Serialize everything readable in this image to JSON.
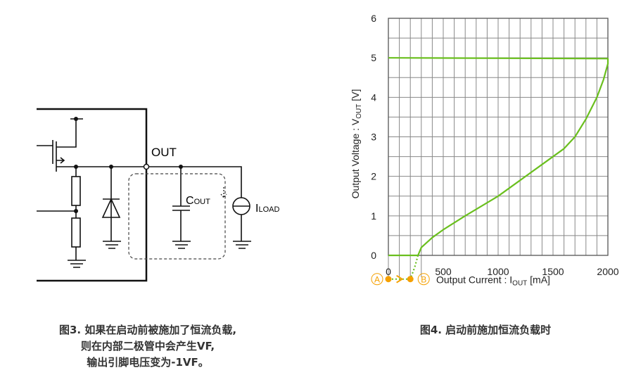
{
  "circuit": {
    "out_label": "OUT",
    "cout_label": "C",
    "cout_sub": "OUT",
    "v_label": "V",
    "iload_label": "I",
    "iload_sub": "LOAD"
  },
  "captions": {
    "fig3_line1": "图3. 如果在启动前被施加了恒流负载,",
    "fig3_line2": "则在内部二极管中会产生VF,",
    "fig3_line3": "输出引脚电压变为-1VF。",
    "fig4": "图4. 启动前施加恒流负载时"
  },
  "chart_data": {
    "type": "line",
    "xlabel": "Output Current : I",
    "xlabel_sub": "OUT",
    "xlabel_unit": " [mA]",
    "ylabel": "Output Voltage : V",
    "ylabel_sub": "OUT",
    "ylabel_unit": " [V]",
    "xlim": [
      0,
      2000
    ],
    "ylim": [
      0,
      6
    ],
    "x_ticks": [
      "0",
      "500",
      "1000",
      "1500",
      "2000"
    ],
    "y_ticks": [
      "0",
      "1",
      "2",
      "3",
      "4",
      "5",
      "6"
    ],
    "grid": true,
    "line_color": "#6abf1e",
    "marker_color": "#f5a000",
    "series": [
      {
        "points": [
          [
            0,
            0
          ],
          [
            270,
            0
          ],
          [
            300,
            0.2
          ],
          [
            400,
            0.45
          ],
          [
            500,
            0.65
          ],
          [
            700,
            1.0
          ],
          [
            1000,
            1.5
          ],
          [
            1200,
            1.9
          ],
          [
            1400,
            2.3
          ],
          [
            1600,
            2.7
          ],
          [
            1700,
            3.0
          ],
          [
            1800,
            3.45
          ],
          [
            1900,
            4.0
          ],
          [
            1960,
            4.45
          ],
          [
            2000,
            4.85
          ],
          [
            2000,
            4.98
          ],
          [
            0,
            5.0
          ]
        ]
      },
      {
        "style": "dotted",
        "points": [
          [
            270,
            0
          ],
          [
            240,
            -0.3
          ],
          [
            200,
            -0.6
          ]
        ]
      }
    ],
    "markers": [
      {
        "label": "A",
        "x": 0
      },
      {
        "label": "B",
        "x": 200
      }
    ]
  }
}
